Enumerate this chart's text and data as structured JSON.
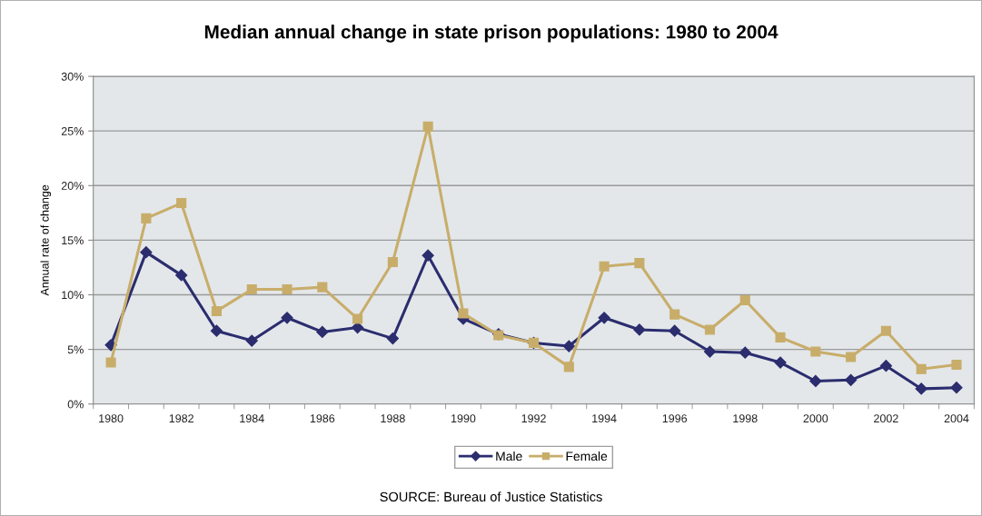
{
  "chart_data": {
    "type": "line",
    "title": "Median annual change in state prison populations: 1980 to 2004",
    "ylabel": "Annual rate of change",
    "categories": [
      "1980",
      null,
      "1982",
      null,
      "1984",
      null,
      "1986",
      null,
      "1988",
      null,
      "1990",
      null,
      "1992",
      null,
      "1994",
      null,
      "1996",
      null,
      "1998",
      null,
      "2000",
      null,
      "2002",
      null,
      "2004"
    ],
    "series": [
      {
        "name": "Male",
        "color": "#2b2d6e",
        "marker": "diamond",
        "values": [
          5.4,
          13.9,
          11.8,
          6.7,
          5.8,
          7.9,
          6.6,
          7.0,
          6.0,
          13.6,
          7.8,
          6.4,
          5.6,
          5.3,
          7.9,
          6.8,
          6.7,
          4.8,
          4.7,
          3.8,
          2.1,
          2.2,
          3.5,
          1.4,
          1.5
        ]
      },
      {
        "name": "Female",
        "color": "#c8ad6a",
        "marker": "square",
        "values": [
          3.8,
          17.0,
          18.4,
          8.5,
          10.5,
          10.5,
          10.7,
          7.8,
          13.0,
          25.4,
          8.3,
          6.3,
          5.6,
          3.4,
          12.6,
          12.9,
          8.2,
          6.8,
          9.5,
          6.1,
          4.8,
          4.3,
          6.7,
          3.2,
          3.6
        ]
      }
    ],
    "ylim": [
      0,
      30
    ],
    "yticks": [
      {
        "value": 0,
        "label": "0%"
      },
      {
        "value": 5,
        "label": "5%"
      },
      {
        "value": 10,
        "label": "10%"
      },
      {
        "value": 15,
        "label": "15%"
      },
      {
        "value": 20,
        "label": "20%"
      },
      {
        "value": 25,
        "label": "25%"
      },
      {
        "value": 30,
        "label": "30%"
      }
    ],
    "grid": "y",
    "legend": "bottom",
    "line_style": "solid",
    "annotations": [
      "SOURCE: Bureau of Justice Statistics"
    ]
  }
}
